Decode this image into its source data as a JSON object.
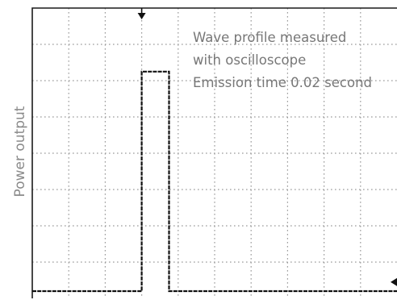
{
  "chart_data": {
    "type": "line",
    "ylabel": "Power output",
    "xlabel": "",
    "annotation": [
      "Wave profile measured",
      "with oscilloscope",
      "Emission time 0.02 second"
    ],
    "x_divisions": 10,
    "y_divisions": 8,
    "xlim": [
      0,
      10
    ],
    "ylim": [
      0,
      8
    ],
    "grid": true,
    "series": [
      {
        "x": [
          0,
          3.0,
          3.0,
          3.75,
          3.75,
          10
        ],
        "y": [
          0.2,
          0.2,
          6.25,
          6.25,
          0.2,
          0.2
        ]
      }
    ],
    "trigger_marker_x": 3.0,
    "level_marker_y": 0.45,
    "colors": {
      "trace": "#111111",
      "grid": "#9a9a9a",
      "text": "#777777"
    }
  }
}
